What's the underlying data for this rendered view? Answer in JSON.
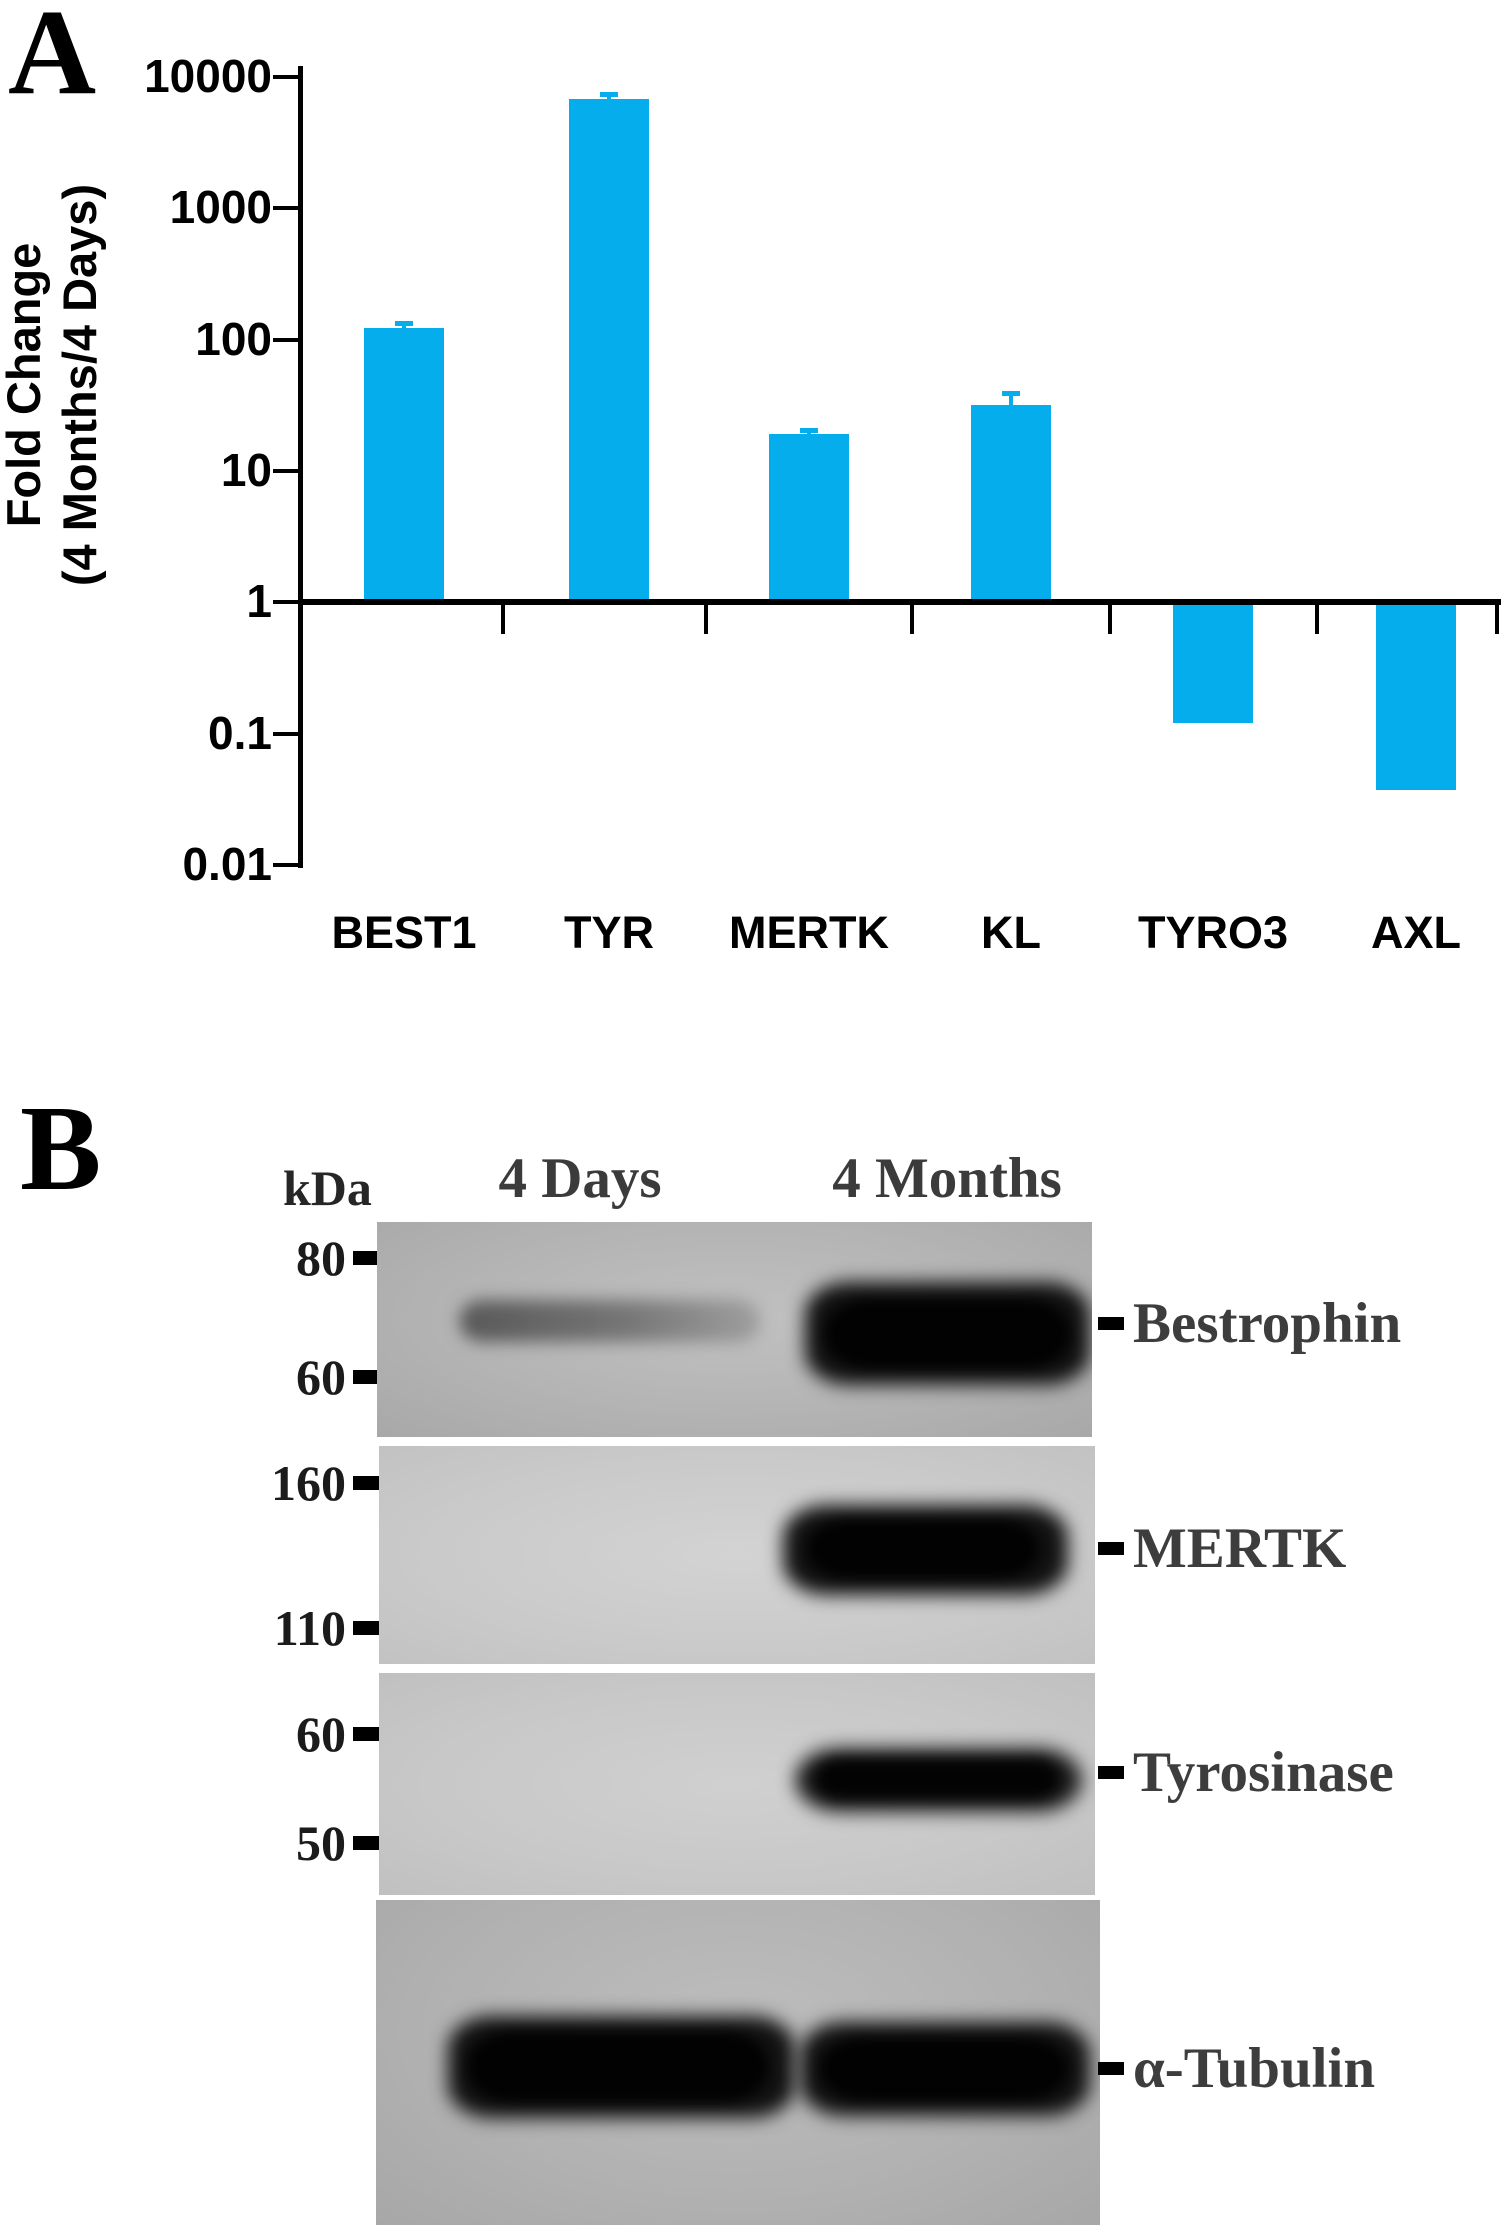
{
  "figure": {
    "panel_a_letter": "A",
    "panel_b_letter": "B"
  },
  "chart_data": {
    "type": "bar",
    "title": "",
    "ylabel_line1": "Fold Change",
    "ylabel_line2": "(4 Months/4 Days)",
    "xlabel": "",
    "scale": "log",
    "ylim": [
      0.01,
      10000
    ],
    "grid": false,
    "legend": null,
    "bar_color": "#05ADEC",
    "categories": [
      "BEST1",
      "TYR",
      "MERTK",
      "KL",
      "TYRO3",
      "AXL"
    ],
    "values": [
      123,
      6800,
      19,
      32,
      0.12,
      0.037
    ],
    "error_upper": [
      133,
      7400,
      20.5,
      39,
      null,
      null
    ],
    "y_ticks": [
      10000,
      1000,
      100,
      10,
      1,
      0.1,
      0.01
    ],
    "y_tick_labels": [
      "10000",
      "1000",
      "100",
      "10",
      "1",
      "0.1",
      "0.01"
    ]
  },
  "blot_panel": {
    "kda_label": "kDa",
    "col_headers": [
      {
        "label": "4 Days"
      },
      {
        "label": "4 Months"
      }
    ],
    "blots": [
      {
        "label": "Bestrophin",
        "markers": [
          {
            "label": "80"
          },
          {
            "label": "60"
          }
        ],
        "bands": [
          {
            "lane": "4 Days",
            "intensity": "faint"
          },
          {
            "lane": "4 Months",
            "intensity": "strong"
          }
        ]
      },
      {
        "label": "MERTK",
        "markers": [
          {
            "label": "160"
          },
          {
            "label": "110"
          }
        ],
        "bands": [
          {
            "lane": "4 Months",
            "intensity": "strong"
          }
        ]
      },
      {
        "label": "Tyrosinase",
        "markers": [
          {
            "label": "60"
          },
          {
            "label": "50"
          }
        ],
        "bands": [
          {
            "lane": "4 Months",
            "intensity": "strong"
          }
        ]
      },
      {
        "label": "α-Tubulin",
        "markers": [],
        "bands": [
          {
            "lane": "4 Days",
            "intensity": "strong"
          },
          {
            "lane": "4 Months",
            "intensity": "strong"
          }
        ]
      }
    ]
  }
}
